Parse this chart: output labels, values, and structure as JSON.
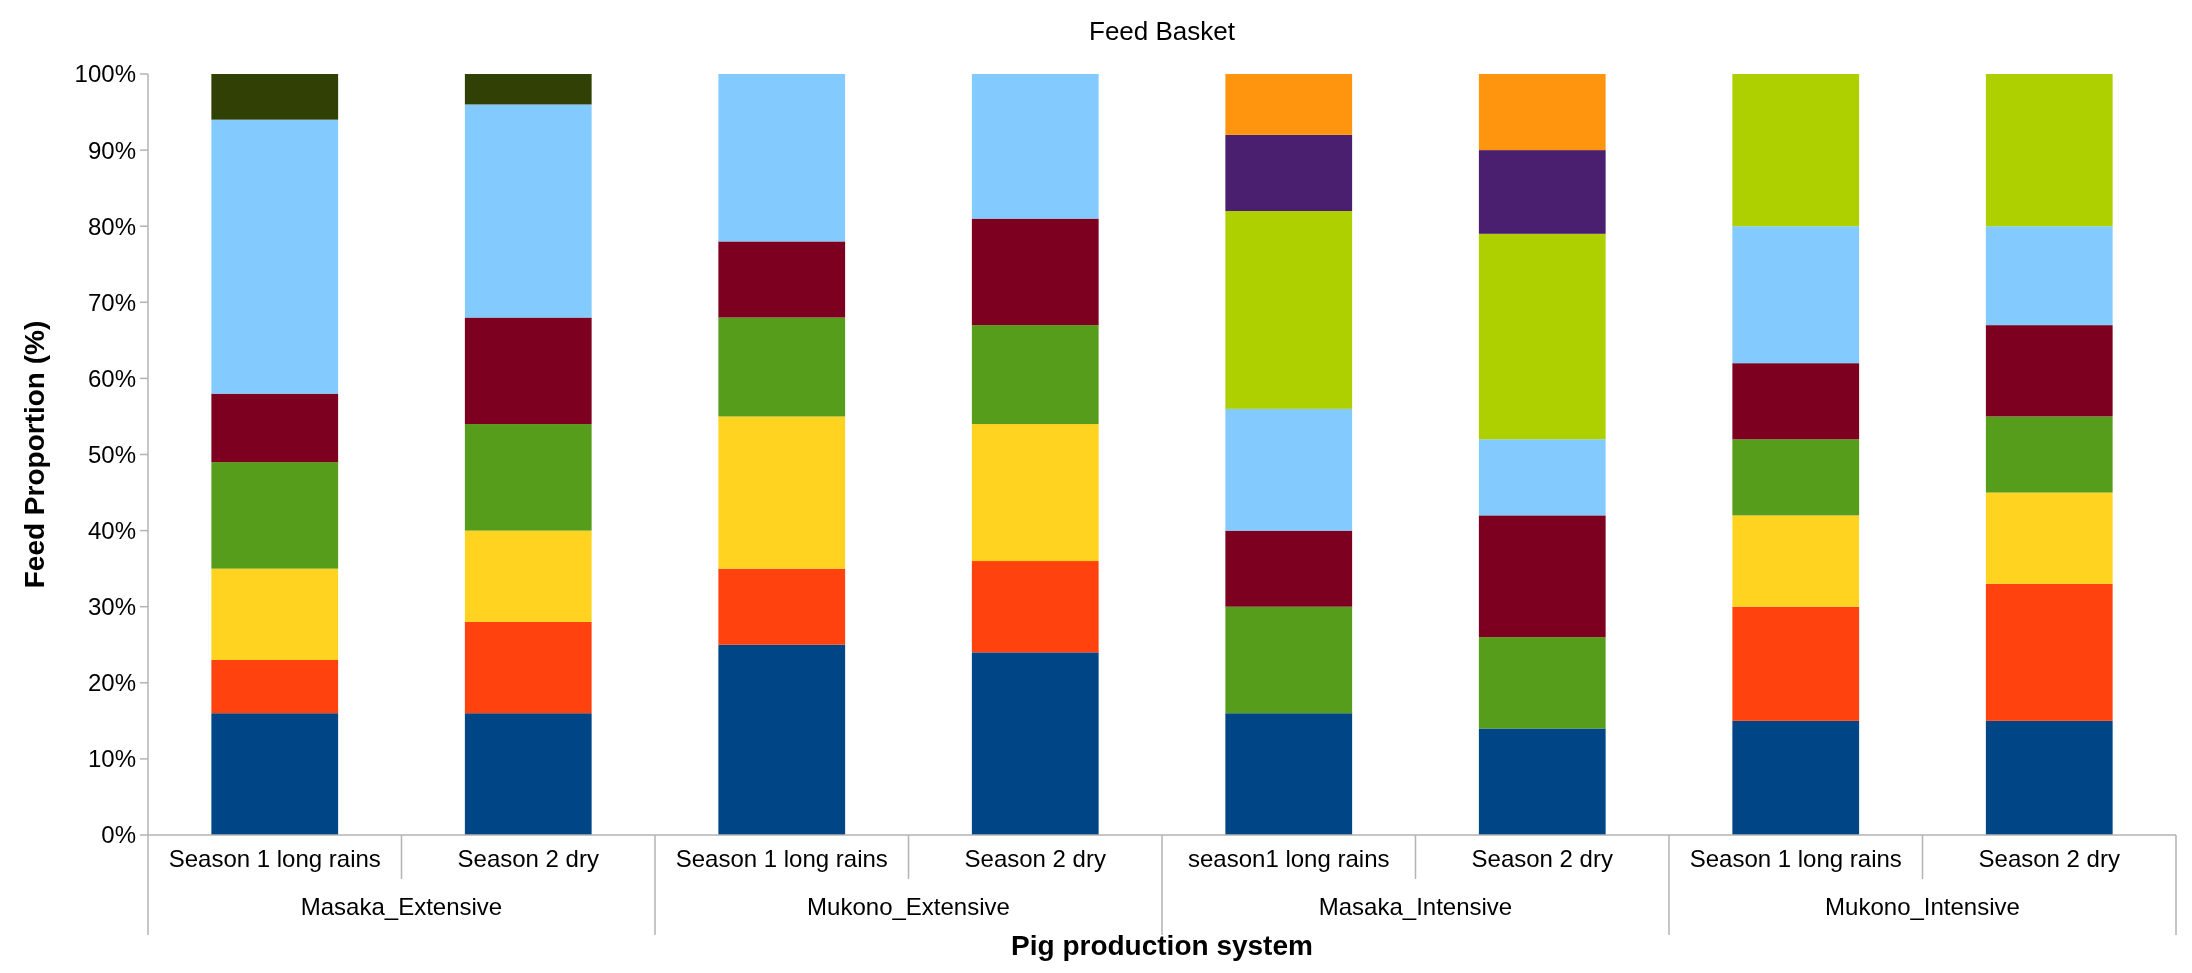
{
  "chart_data": {
    "type": "bar",
    "title": "Feed Basket",
    "xlabel": "Pig production system",
    "ylabel": "Feed Proportion (%)",
    "stacked": true,
    "grid": false,
    "categories": [
      "Season 1 long rains",
      "Season 2 dry",
      "Season 1 long rains",
      "Season 2 dry",
      "season1 long rains",
      "Season 2 dry",
      "Season 1 long rains",
      "Season 2 dry"
    ],
    "annotations": [
      "Masaka_Extensive",
      "Mukono_Extensive",
      "Masaka_Intensive",
      "Mukono_Intensive"
    ],
    "series": [
      {
        "color": "#004586",
        "values": [
          16,
          16,
          25,
          24,
          16,
          14,
          15,
          15
        ]
      },
      {
        "color": "#ff420e",
        "values": [
          7,
          12,
          10,
          12,
          null,
          null,
          15,
          18
        ]
      },
      {
        "color": "#ffd320",
        "values": [
          12,
          12,
          20,
          18,
          null,
          null,
          12,
          12
        ]
      },
      {
        "color": "#579d1c",
        "values": [
          14,
          14,
          13,
          13,
          14,
          12,
          10,
          10
        ]
      },
      {
        "color": "#7e0021",
        "values": [
          9,
          14,
          10,
          14,
          10,
          16,
          10,
          12
        ]
      },
      {
        "color": "#83caff",
        "values": [
          36,
          28,
          22,
          19,
          16,
          10,
          18,
          13
        ]
      },
      {
        "color": "#aecf00",
        "values": [
          null,
          null,
          null,
          null,
          26,
          27,
          20,
          20
        ]
      },
      {
        "color": "#4b1f6f",
        "values": [
          null,
          null,
          null,
          null,
          10,
          11,
          null,
          null
        ]
      },
      {
        "color": "#ff950e",
        "values": [
          null,
          null,
          null,
          null,
          8,
          10,
          null,
          null
        ]
      },
      {
        "color": "#314004",
        "values": [
          6,
          4,
          null,
          null,
          null,
          null,
          null,
          null
        ]
      }
    ],
    "ylim": [
      0,
      100
    ],
    "yticks": [
      {
        "value": 0,
        "label": "0%"
      },
      {
        "value": 10,
        "label": "10%"
      },
      {
        "value": 20,
        "label": "20%"
      },
      {
        "value": 30,
        "label": "30%"
      },
      {
        "value": 40,
        "label": "40%"
      },
      {
        "value": 50,
        "label": "50%"
      },
      {
        "value": 60,
        "label": "60%"
      },
      {
        "value": 70,
        "label": "70%"
      },
      {
        "value": 80,
        "label": "80%"
      },
      {
        "value": 90,
        "label": "90%"
      },
      {
        "value": 100,
        "label": "100%"
      }
    ]
  }
}
